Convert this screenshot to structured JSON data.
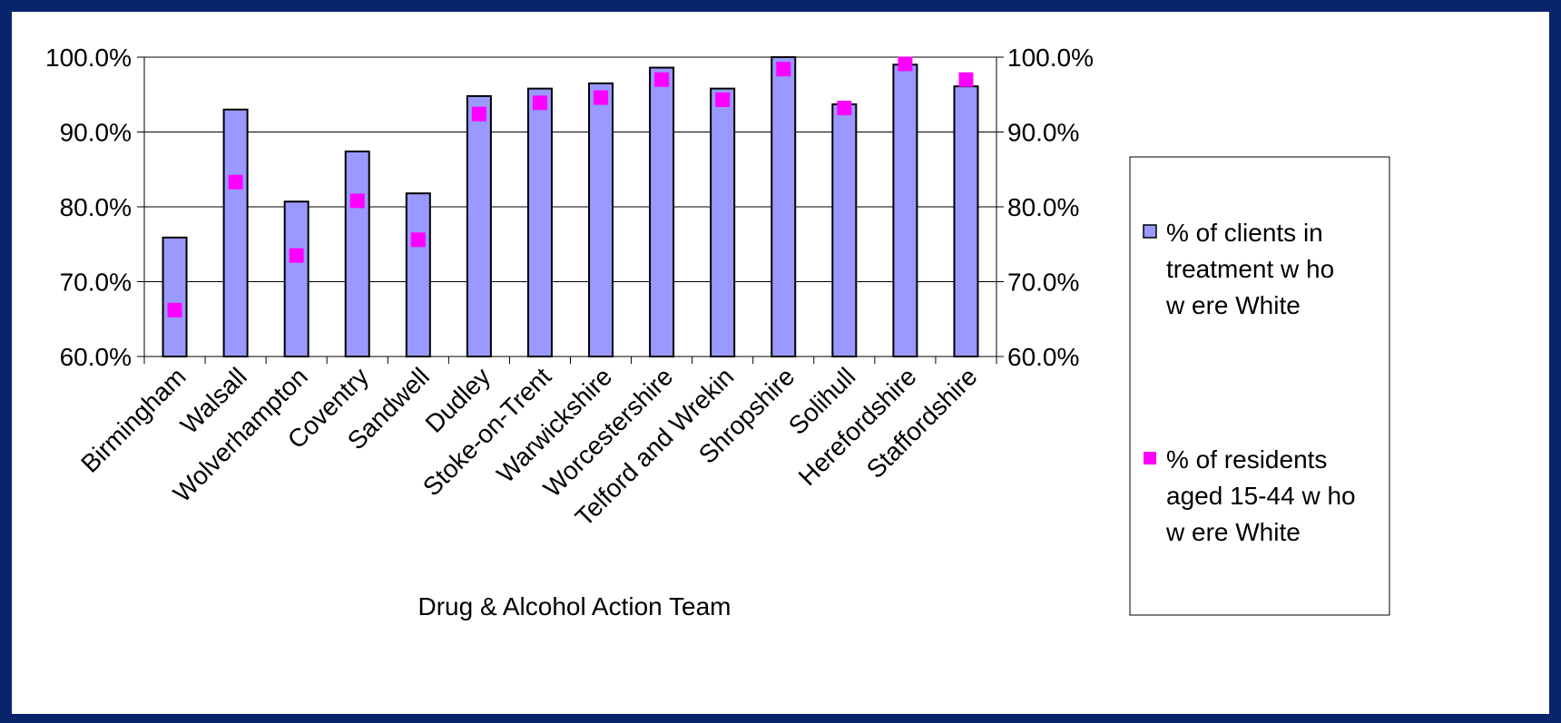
{
  "chart_data": {
    "type": "bar",
    "title": "",
    "xlabel": "Drug & Alcohol Action Team",
    "ylabel": "",
    "ylim": [
      0.6,
      1.0
    ],
    "yticks": [
      1.0,
      0.9,
      0.8,
      0.7,
      0.6
    ],
    "ytick_labels": [
      "100.0%",
      "90.0%",
      "80.0%",
      "70.0%",
      "60.0%"
    ],
    "grid": true,
    "legend_position": "right",
    "categories": [
      "Birmingham",
      "Walsall",
      "Wolverhampton",
      "Coventry",
      "Sandwell",
      "Dudley",
      "Stoke-on-Trent",
      "Warwickshire",
      "Worcestershire",
      "Telford and Wrekin",
      "Shropshire",
      "Solihull",
      "Herefordshire",
      "Staffordshire"
    ],
    "series": [
      {
        "name": "% of clients in treatment w ho w ere White",
        "legend_lines": [
          "% of clients in",
          "treatment w ho",
          "w ere White"
        ],
        "kind": "bar",
        "color": "#9999ff",
        "values": [
          0.759,
          0.93,
          0.807,
          0.874,
          0.818,
          0.948,
          0.958,
          0.965,
          0.986,
          0.958,
          1.0,
          0.937,
          0.99,
          0.961
        ]
      },
      {
        "name": "% of residents aged 15-44 w ho w ere White",
        "legend_lines": [
          "% of residents",
          "aged 15-44 w ho",
          "w ere White"
        ],
        "kind": "marker",
        "color": "#ff00ff",
        "values": [
          0.662,
          0.833,
          0.735,
          0.808,
          0.756,
          0.924,
          0.939,
          0.946,
          0.97,
          0.943,
          0.984,
          0.932,
          0.991,
          0.97
        ]
      }
    ]
  },
  "colors": {
    "frame": "#0a246b",
    "bar_fill": "#9999ff",
    "marker": "#ff00ff"
  }
}
